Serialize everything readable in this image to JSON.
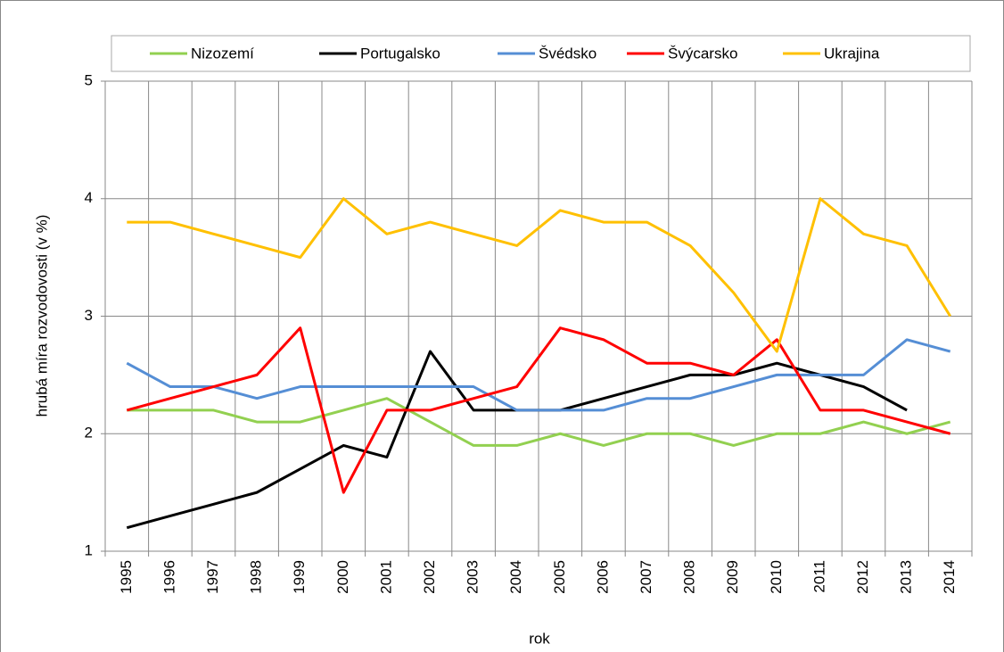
{
  "chart_data": {
    "type": "line",
    "y_label": "hrubá míra rozvodovosti (v %)",
    "x_label": "rok",
    "categories": [
      "1995",
      "1996",
      "1997",
      "1998",
      "1999",
      "2000",
      "2001",
      "2002",
      "2003",
      "2004",
      "2005",
      "2006",
      "2007",
      "2008",
      "2009",
      "2010",
      "2011",
      "2012",
      "2013",
      "2014"
    ],
    "series": [
      {
        "name": "Nizozemí",
        "color": "#92d050",
        "values": [
          2.2,
          2.2,
          2.2,
          2.1,
          2.1,
          2.2,
          2.3,
          2.1,
          1.9,
          1.9,
          2.0,
          1.9,
          2.0,
          2.0,
          1.9,
          2.0,
          2.0,
          2.1,
          2.0,
          2.1
        ]
      },
      {
        "name": "Portugalsko",
        "color": "#000000",
        "values": [
          1.2,
          1.3,
          1.4,
          1.5,
          1.7,
          1.9,
          1.8,
          2.7,
          2.2,
          2.2,
          2.2,
          2.3,
          2.4,
          2.5,
          2.5,
          2.6,
          2.5,
          2.4,
          2.2,
          null
        ]
      },
      {
        "name": "Švédsko",
        "color": "#558ed5",
        "values": [
          2.6,
          2.4,
          2.4,
          2.3,
          2.4,
          2.4,
          2.4,
          2.4,
          2.4,
          2.2,
          2.2,
          2.2,
          2.3,
          2.3,
          2.4,
          2.5,
          2.5,
          2.5,
          2.8,
          2.7
        ]
      },
      {
        "name": "Švýcarsko",
        "color": "#ff0000",
        "values": [
          2.2,
          2.3,
          2.4,
          2.5,
          2.9,
          1.5,
          2.2,
          2.2,
          2.3,
          2.4,
          2.9,
          2.8,
          2.6,
          2.6,
          2.5,
          2.8,
          2.2,
          2.2,
          2.1,
          2.0
        ]
      },
      {
        "name": "Ukrajina",
        "color": "#ffc000",
        "values": [
          3.8,
          3.8,
          3.7,
          3.6,
          3.5,
          4.0,
          3.7,
          3.8,
          3.7,
          3.6,
          3.9,
          3.8,
          3.8,
          3.6,
          3.2,
          2.7,
          4.0,
          3.7,
          3.6,
          3.0
        ]
      }
    ],
    "ylim": [
      1,
      5
    ],
    "yticks": [
      1,
      2,
      3,
      4,
      5
    ],
    "grid": true,
    "legend": "top"
  }
}
